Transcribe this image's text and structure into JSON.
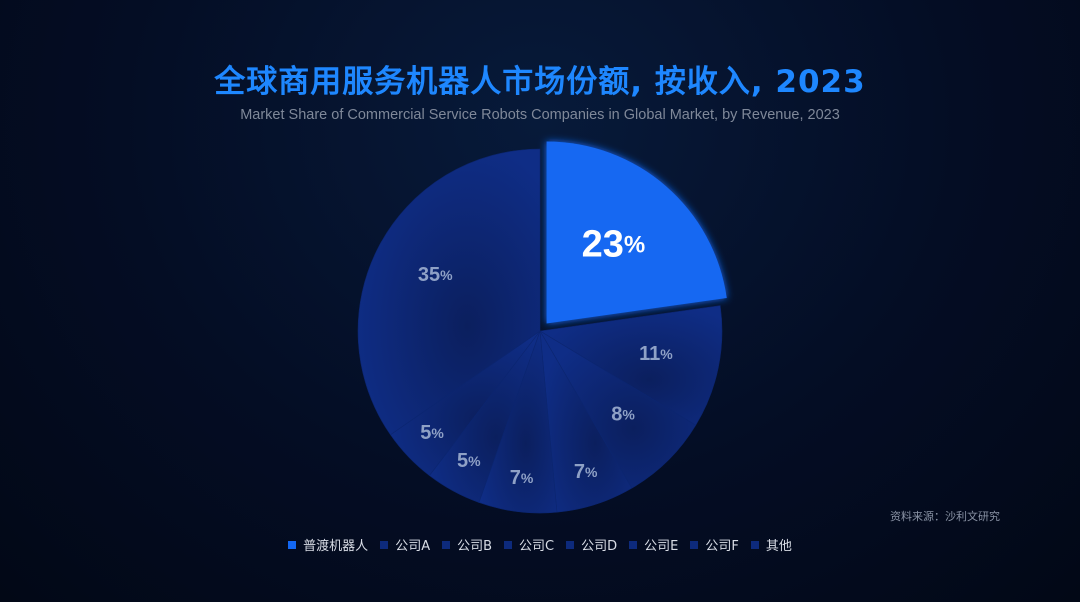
{
  "title": "全球商用服务机器人市场份额, 按收入, 2023",
  "subtitle": "Market Share of Commercial Service Robots Companies in Global Market, by Revenue, 2023",
  "source": "资料来源：沙利文研究",
  "colors": {
    "highlight": "#1367f2",
    "pie": "#0d2a7c",
    "label": "#8fa1c6",
    "highlight_label": "#ffffff"
  },
  "chart_data": {
    "type": "pie",
    "title": "全球商用服务机器人市场份额, 按收入, 2023",
    "unit": "%",
    "categories": [
      "普渡机器人",
      "公司A",
      "公司B",
      "公司C",
      "公司D",
      "公司E",
      "公司F",
      "其他"
    ],
    "values": [
      23,
      11,
      8,
      7,
      7,
      5,
      5,
      35
    ],
    "value_labels": [
      "23",
      "11",
      "8",
      "7",
      "7",
      "5",
      "5",
      "35"
    ],
    "exploded": "普渡机器人",
    "legend_position": "bottom"
  }
}
